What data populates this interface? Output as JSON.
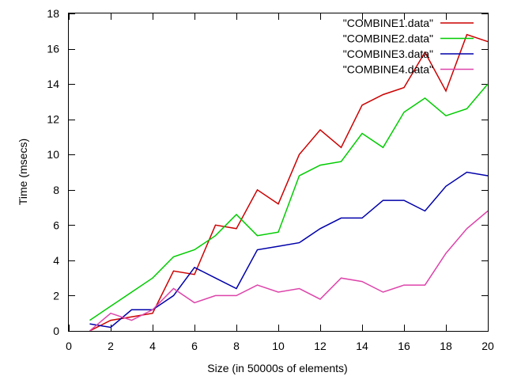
{
  "chart_data": {
    "type": "line",
    "title": "",
    "xlabel": "Size (in 50000s of elements)",
    "ylabel": "Time (msecs)",
    "xlim": [
      0,
      20
    ],
    "ylim": [
      0,
      18
    ],
    "x_ticks": [
      0,
      2,
      4,
      6,
      8,
      10,
      12,
      14,
      16,
      18,
      20
    ],
    "y_ticks": [
      0,
      2,
      4,
      6,
      8,
      10,
      12,
      14,
      16,
      18
    ],
    "grid": false,
    "legend_position": "top-right",
    "series": [
      {
        "name": "\"COMBINE1.data\"",
        "color": "#cc0000",
        "x": [
          1,
          2,
          3,
          4,
          5,
          6,
          7,
          8,
          9,
          10,
          11,
          12,
          13,
          14,
          15,
          16,
          17,
          18,
          19,
          20
        ],
        "y": [
          0.0,
          0.6,
          0.8,
          1.0,
          3.4,
          3.2,
          6.0,
          5.8,
          8.0,
          7.2,
          10.0,
          11.4,
          10.4,
          12.8,
          13.4,
          13.8,
          15.8,
          13.6,
          16.8,
          16.4
        ]
      },
      {
        "name": "\"COMBINE2.data\"",
        "color": "#00cc00",
        "x": [
          1,
          2,
          3,
          4,
          5,
          6,
          7,
          8,
          9,
          10,
          11,
          12,
          13,
          14,
          15,
          16,
          17,
          18,
          19,
          20
        ],
        "y": [
          0.6,
          1.4,
          2.2,
          3.0,
          4.2,
          4.6,
          5.4,
          6.6,
          5.4,
          5.6,
          8.8,
          9.4,
          9.6,
          11.2,
          10.4,
          12.4,
          13.2,
          12.2,
          12.6,
          14.0
        ]
      },
      {
        "name": "\"COMBINE3.data\"",
        "color": "#0000aa",
        "x": [
          1,
          2,
          3,
          4,
          5,
          6,
          7,
          8,
          9,
          10,
          11,
          12,
          13,
          14,
          15,
          16,
          17,
          18,
          19,
          20
        ],
        "y": [
          0.4,
          0.2,
          1.2,
          1.2,
          2.0,
          3.6,
          3.0,
          2.4,
          4.6,
          4.8,
          5.0,
          5.8,
          6.4,
          6.4,
          7.4,
          7.4,
          6.8,
          8.2,
          9.0,
          8.8
        ]
      },
      {
        "name": "\"COMBINE4.data\"",
        "color": "#dd44aa",
        "x": [
          1,
          2,
          3,
          4,
          5,
          6,
          7,
          8,
          9,
          10,
          11,
          12,
          13,
          14,
          15,
          16,
          17,
          18,
          19,
          20
        ],
        "y": [
          0.0,
          1.0,
          0.6,
          1.2,
          2.4,
          1.6,
          2.0,
          2.0,
          2.6,
          2.2,
          2.4,
          1.8,
          3.0,
          2.8,
          2.2,
          2.6,
          2.6,
          4.4,
          5.8,
          6.8
        ]
      }
    ]
  }
}
